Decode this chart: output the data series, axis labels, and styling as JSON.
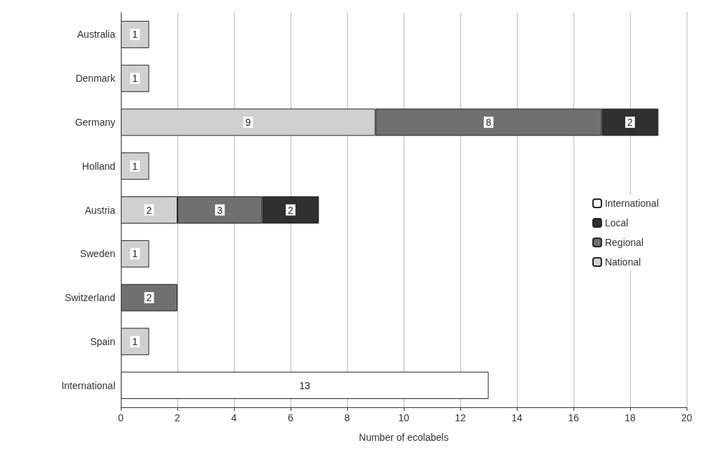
{
  "chart_data": {
    "type": "bar",
    "orientation": "horizontal",
    "stacked": true,
    "xlabel": "Number of ecolabels",
    "categories": [
      "Australia",
      "Denmark",
      "Germany",
      "Holland",
      "Austria",
      "Sweden",
      "Switzerland",
      "Spain",
      "International"
    ],
    "series": [
      {
        "name": "National",
        "color": "#d0d0d0",
        "values": [
          1,
          1,
          9,
          1,
          2,
          1,
          null,
          1,
          null
        ]
      },
      {
        "name": "Regional",
        "color": "#707070",
        "values": [
          null,
          null,
          8,
          null,
          3,
          null,
          2,
          null,
          null
        ]
      },
      {
        "name": "Local",
        "color": "#303030",
        "values": [
          null,
          null,
          2,
          null,
          2,
          null,
          null,
          null,
          null
        ]
      },
      {
        "name": "International",
        "color": "#ffffff",
        "values": [
          null,
          null,
          null,
          null,
          null,
          null,
          null,
          null,
          13
        ]
      }
    ],
    "xlim": [
      0,
      20
    ],
    "xticks": [
      0,
      2,
      4,
      6,
      8,
      10,
      12,
      14,
      16,
      18,
      20
    ],
    "grid": "x",
    "legend": "right",
    "data_labels": true
  }
}
